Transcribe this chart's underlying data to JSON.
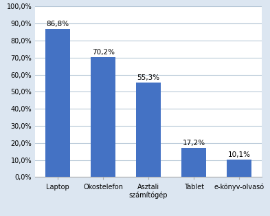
{
  "categories": [
    "Laptop",
    "Okostelefon",
    "Asztali\nszámítógép",
    "Tablet",
    "e-könyv-olvasó"
  ],
  "values": [
    86.8,
    70.2,
    55.3,
    17.2,
    10.1
  ],
  "labels": [
    "86,8%",
    "70,2%",
    "55,3%",
    "17,2%",
    "10,1%"
  ],
  "bar_color": "#4472C4",
  "ylim": [
    0,
    100
  ],
  "yticks": [
    0,
    10,
    20,
    30,
    40,
    50,
    60,
    70,
    80,
    90,
    100
  ],
  "ytick_labels": [
    "0,0%",
    "10,0%",
    "20,0%",
    "30,0%",
    "40,0%",
    "50,0%",
    "60,0%",
    "70,0%",
    "80,0%",
    "90,0%",
    "100,0%"
  ],
  "figure_bg": "#dce6f1",
  "plot_bg": "#ffffff",
  "grid_color": "#b8c9d8",
  "label_fontsize": 7.5,
  "tick_fontsize": 7.0,
  "bar_width": 0.55
}
